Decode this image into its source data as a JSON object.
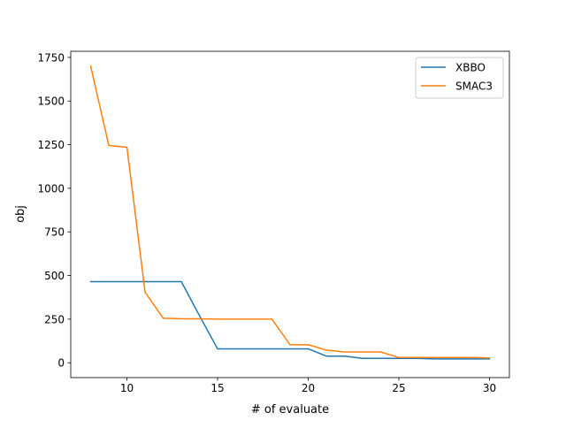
{
  "chart_data": {
    "type": "line",
    "title": "",
    "xlabel": "# of evaluate",
    "ylabel": "obj",
    "xlim": [
      6.9,
      31.1
    ],
    "ylim": [
      -85,
      1785
    ],
    "xticks": [
      10,
      15,
      20,
      25,
      30
    ],
    "yticks": [
      0,
      250,
      500,
      750,
      1000,
      1250,
      1500,
      1750
    ],
    "grid": false,
    "legend_position": "top-right",
    "series": [
      {
        "name": "XBBO",
        "color": "#1f77b4",
        "x": [
          8,
          9,
          10,
          11,
          12,
          13,
          14,
          15,
          16,
          17,
          18,
          19,
          20,
          21,
          22,
          23,
          24,
          25,
          26,
          27,
          28,
          29,
          30
        ],
        "values": [
          465,
          465,
          465,
          465,
          465,
          465,
          270,
          80,
          80,
          80,
          80,
          80,
          80,
          38,
          38,
          25,
          25,
          25,
          25,
          22,
          22,
          22,
          22
        ]
      },
      {
        "name": "SMAC3",
        "color": "#ff7f0e",
        "x": [
          8,
          9,
          10,
          11,
          12,
          13,
          14,
          15,
          16,
          17,
          18,
          19,
          20,
          21,
          22,
          23,
          24,
          25,
          26,
          27,
          28,
          29,
          30
        ],
        "values": [
          1700,
          1245,
          1235,
          405,
          255,
          252,
          252,
          250,
          250,
          250,
          250,
          103,
          103,
          73,
          62,
          62,
          62,
          30,
          30,
          30,
          30,
          30,
          28
        ]
      }
    ]
  }
}
